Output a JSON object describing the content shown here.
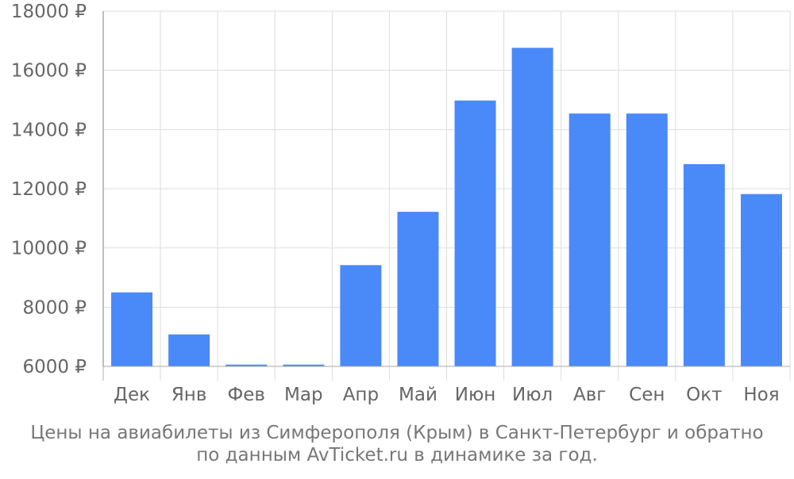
{
  "chart_data": {
    "type": "bar",
    "categories": [
      "Дек",
      "Янв",
      "Фев",
      "Мар",
      "Апр",
      "Май",
      "Июн",
      "Июл",
      "Авг",
      "Сен",
      "Окт",
      "Ноя"
    ],
    "values": [
      8500,
      7080,
      6060,
      6060,
      9420,
      11220,
      14980,
      16760,
      14540,
      14540,
      12830,
      11820
    ],
    "ylim": [
      6000,
      18000
    ],
    "y_ticks": [
      "6000 ₽",
      "8000 ₽",
      "10000 ₽",
      "12000 ₽",
      "14000 ₽",
      "16000 ₽",
      "18000 ₽"
    ],
    "y_tick_values": [
      6000,
      8000,
      10000,
      12000,
      14000,
      16000,
      18000
    ],
    "grid": true,
    "bar_color": "#4a89f8",
    "grid_color": "#dddddd",
    "axis_color": "#aaaaaa",
    "label_color": "#666666"
  },
  "caption": {
    "line1": "Цены на авиабилеты из Симферополя (Крым) в Санкт-Петербург и обратно",
    "line2": "по данным AvTicket.ru в динамике за год."
  }
}
